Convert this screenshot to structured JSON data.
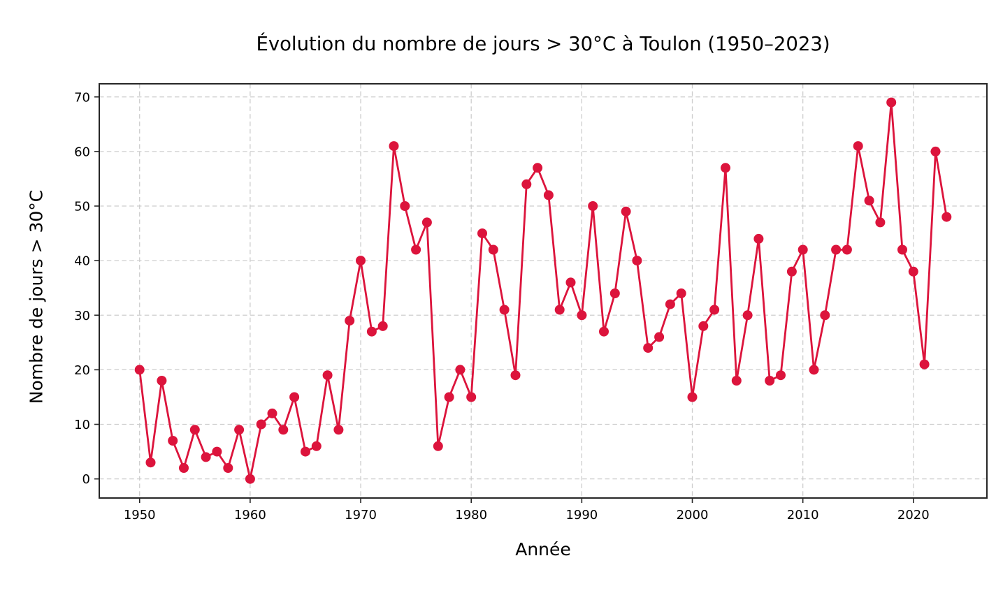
{
  "chart_data": {
    "type": "line",
    "title": "Évolution du nombre de jours > 30°C à Toulon (1950–2023)",
    "xlabel": "Année",
    "ylabel": "Nombre de jours > 30°C",
    "x": [
      1950,
      1951,
      1952,
      1953,
      1954,
      1955,
      1956,
      1957,
      1958,
      1959,
      1960,
      1961,
      1962,
      1963,
      1964,
      1965,
      1966,
      1967,
      1968,
      1969,
      1970,
      1971,
      1972,
      1973,
      1974,
      1975,
      1976,
      1977,
      1978,
      1979,
      1980,
      1981,
      1982,
      1983,
      1984,
      1985,
      1986,
      1987,
      1988,
      1989,
      1990,
      1991,
      1992,
      1993,
      1994,
      1995,
      1996,
      1997,
      1998,
      1999,
      2000,
      2001,
      2002,
      2003,
      2004,
      2005,
      2006,
      2007,
      2008,
      2009,
      2010,
      2011,
      2012,
      2013,
      2014,
      2015,
      2016,
      2017,
      2018,
      2019,
      2020,
      2021,
      2022,
      2023
    ],
    "y": [
      20,
      3,
      18,
      7,
      2,
      9,
      4,
      5,
      2,
      9,
      0,
      10,
      12,
      9,
      15,
      5,
      6,
      19,
      9,
      29,
      40,
      27,
      28,
      61,
      50,
      42,
      47,
      6,
      15,
      20,
      15,
      45,
      42,
      31,
      19,
      54,
      57,
      52,
      31,
      36,
      30,
      50,
      27,
      34,
      49,
      40,
      24,
      26,
      32,
      34,
      15,
      28,
      31,
      57,
      18,
      30,
      44,
      18,
      19,
      38,
      42,
      20,
      30,
      42,
      42,
      61,
      51,
      47,
      69,
      42,
      38,
      21,
      60,
      48
    ],
    "xticks": [
      1950,
      1960,
      1970,
      1980,
      1990,
      2000,
      2010,
      2020
    ],
    "yticks": [
      0,
      10,
      20,
      30,
      40,
      50,
      60,
      70
    ],
    "xlim": [
      1946.35,
      2026.65
    ],
    "ylim": [
      -3.5,
      72.4
    ],
    "grid": true,
    "grid_style": "dashed",
    "legend": "none",
    "line_color": "#DC143C",
    "marker": "circle",
    "background_color": "#FFFFFF",
    "grid_color": "#CDCDCD",
    "axis_color": "#262626",
    "text_color": "#000000"
  }
}
